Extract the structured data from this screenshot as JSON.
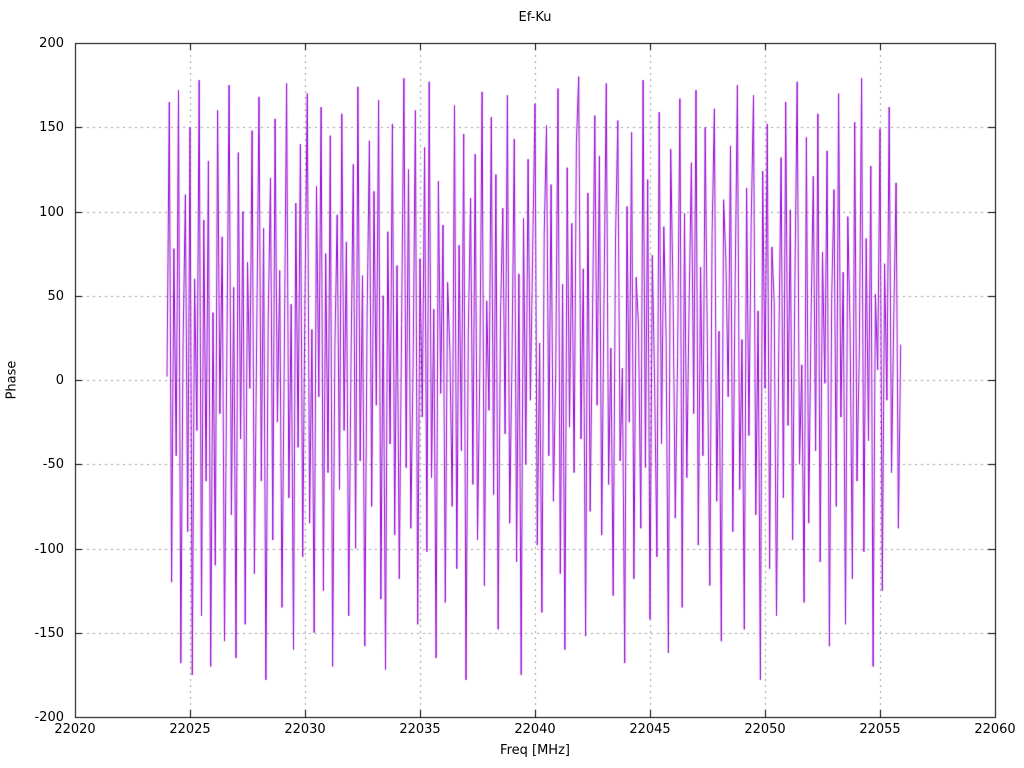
{
  "figure": {
    "background": "#ffffff",
    "text_color": "#000000"
  },
  "chart_data": {
    "type": "line",
    "title": "Ef-Ku",
    "xlabel": "Freq [MHz]",
    "ylabel": "Phase",
    "xlim": [
      22020,
      22060
    ],
    "ylim": [
      -200,
      200
    ],
    "xticks": [
      22020,
      22025,
      22030,
      22035,
      22040,
      22045,
      22050,
      22055,
      22060
    ],
    "yticks": [
      -200,
      -150,
      -100,
      -50,
      0,
      50,
      100,
      150,
      200
    ],
    "grid": true,
    "grid_color": "#9e9e9e",
    "border_color": "#000000",
    "legend": "none",
    "line_color": "#9400d3",
    "series": [
      {
        "name": "Ef-Ku phase",
        "x_start": 22024.0,
        "x_step": 0.1,
        "y": [
          2,
          165,
          -120,
          78,
          -45,
          172,
          -168,
          23,
          110,
          -90,
          150,
          -175,
          60,
          -30,
          178,
          -140,
          95,
          -60,
          130,
          -170,
          40,
          -110,
          160,
          -20,
          85,
          -155,
          12,
          175,
          -80,
          55,
          -165,
          135,
          -35,
          100,
          -145,
          70,
          -5,
          148,
          -115,
          25,
          168,
          -60,
          90,
          -178,
          35,
          120,
          -95,
          155,
          -25,
          65,
          -135,
          15,
          176,
          -70,
          45,
          -160,
          105,
          -40,
          140,
          -105,
          52,
          170,
          -85,
          30,
          -150,
          115,
          -10,
          162,
          -125,
          75,
          -55,
          145,
          -170,
          20,
          98,
          -65,
          158,
          -30,
          82,
          -140,
          10,
          128,
          -100,
          174,
          -48,
          62,
          -158,
          37,
          142,
          -75,
          112,
          -15,
          166,
          -130,
          50,
          -172,
          88,
          -38,
          152,
          -92,
          68,
          -118,
          33,
          179,
          -52,
          125,
          -88,
          8,
          160,
          -145,
          72,
          -22,
          138,
          -102,
          177,
          -58,
          42,
          -165,
          118,
          -8,
          92,
          -132,
          58,
          17,
          -75,
          163,
          -112,
          80,
          -42,
          146,
          -178,
          28,
          108,
          -62,
          134,
          -95,
          5,
          171,
          -122,
          47,
          -18,
          156,
          -68,
          122,
          -148,
          38,
          102,
          -32,
          169,
          -85,
          13,
          143,
          -108,
          63,
          -175,
          96,
          -50,
          131,
          -12,
          77,
          164,
          -98,
          22,
          -138,
          86,
          151,
          -45,
          116,
          -72,
          3,
          173,
          -115,
          57,
          -160,
          126,
          -28,
          93,
          -55,
          141,
          180,
          -35,
          66,
          -152,
          111,
          -78,
          36,
          157,
          -15,
          133,
          -92,
          48,
          176,
          -62,
          19,
          -128,
          83,
          154,
          -48,
          7,
          -168,
          103,
          -25,
          147,
          -118,
          61,
          32,
          -88,
          178,
          -52,
          119,
          -142,
          74,
          0,
          -105,
          159,
          -38,
          91,
          26,
          -162,
          137,
          53,
          -82,
          14,
          167,
          -135,
          99,
          -58,
          44,
          129,
          -20,
          172,
          -98,
          67,
          -45,
          150,
          11,
          -122,
          87,
          161,
          -72,
          29,
          -155,
          107,
          71,
          -10,
          139,
          -90,
          54,
          175,
          -65,
          24,
          -148,
          114,
          -33,
          94,
          169,
          -80,
          41,
          -178,
          124,
          -5,
          152,
          -112,
          79,
          46,
          -140,
          18,
          132,
          -70,
          165,
          -27,
          101,
          -95,
          59,
          177,
          -50,
          9,
          -132,
          144,
          -85,
          34,
          121,
          -42,
          158,
          -108,
          76,
          -2,
          136,
          -158,
          49,
          113,
          -75,
          170,
          -22,
          64,
          -145,
          97,
          30,
          -118,
          153,
          -60,
          16,
          179,
          -102,
          84,
          -36,
          127,
          -170,
          51,
          6,
          149,
          -125,
          69,
          -12,
          162,
          -55,
          38,
          117,
          -88,
          21
        ]
      }
    ]
  }
}
